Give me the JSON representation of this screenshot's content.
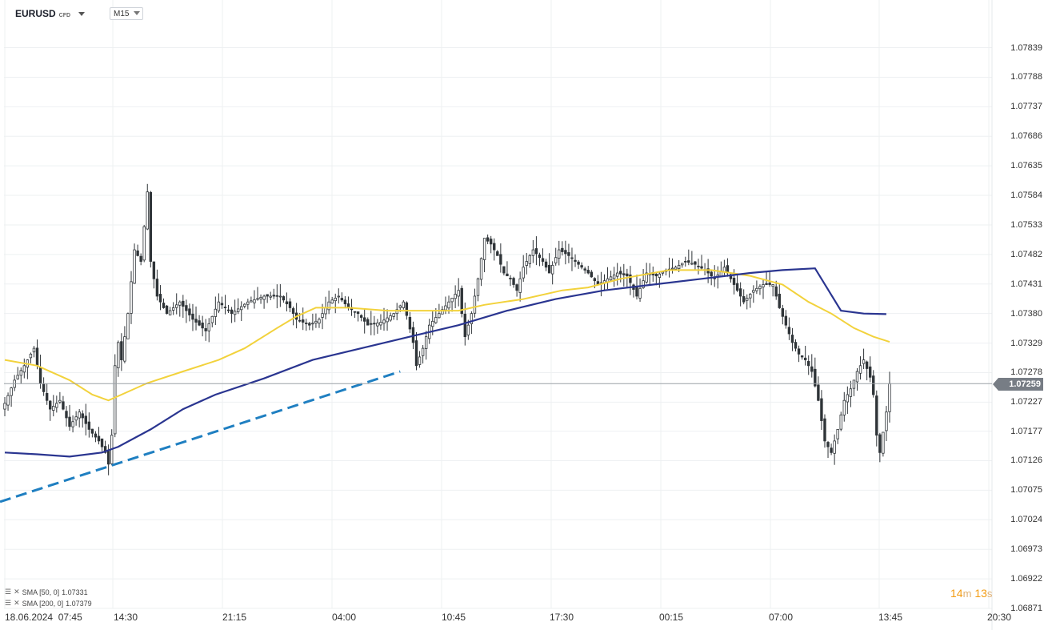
{
  "toolbar": {
    "symbol": "EURUSD",
    "symbol_type": "CFD",
    "timeframe": "M15"
  },
  "price_axis": [
    "1.07839",
    "1.07788",
    "1.07737",
    "1.07686",
    "1.07635",
    "1.07584",
    "1.07533",
    "1.07482",
    "1.07431",
    "1.07380",
    "1.07329",
    "1.07278",
    "1.07227",
    "1.07177",
    "1.07126",
    "1.07075",
    "1.07024",
    "1.06973",
    "1.06922",
    "1.06871"
  ],
  "time_axis": [
    "18.06.2024  07:45",
    "14:30",
    "21:15",
    "04:00",
    "10:45",
    "17:30",
    "00:15",
    "07:00",
    "13:45",
    "20:30"
  ],
  "current_price": "1.07259",
  "legend": [
    {
      "label": "SMA [50, 0]",
      "value": "1.07331"
    },
    {
      "label": "SMA [200, 0]",
      "value": "1.07379"
    }
  ],
  "countdown": {
    "minutes": "14",
    "m_unit": "m",
    "seconds": "13",
    "s_unit": "s"
  },
  "colors": {
    "candle": "#2f3438",
    "sma50": "#f2d23c",
    "sma200": "#2a3590",
    "trendline": "#1f7fc1",
    "grid": "#eef0f2",
    "price_line": "#9aa0a6",
    "countdown": "#f39c12"
  },
  "chart_data": {
    "type": "candlestick",
    "instrument": "EURUSD",
    "timeframe": "M15",
    "ylim": [
      1.06871,
      1.07866
    ],
    "y_ticks": [
      1.07839,
      1.07788,
      1.07737,
      1.07686,
      1.07635,
      1.07584,
      1.07533,
      1.07482,
      1.07431,
      1.0738,
      1.07329,
      1.07278,
      1.07227,
      1.07177,
      1.07126,
      1.07075,
      1.07024,
      1.06973,
      1.06922,
      1.06871
    ],
    "x_ticks": [
      "18.06.2024 07:45",
      "14:30",
      "21:15",
      "04:00",
      "10:45",
      "17:30",
      "00:15",
      "07:00",
      "13:45",
      "20:30"
    ],
    "price_path": [
      [
        0,
        1.07225
      ],
      [
        3,
        1.07265
      ],
      [
        6,
        1.0729
      ],
      [
        9,
        1.0732
      ],
      [
        11,
        1.0726
      ],
      [
        14,
        1.07215
      ],
      [
        17,
        1.0723
      ],
      [
        20,
        1.07185
      ],
      [
        23,
        1.0721
      ],
      [
        26,
        1.0718
      ],
      [
        29,
        1.0716
      ],
      [
        31,
        1.0714
      ],
      [
        32,
        1.0712
      ],
      [
        33,
        1.0717
      ],
      [
        34,
        1.0729
      ],
      [
        35,
        1.0733
      ],
      [
        36,
        1.073
      ],
      [
        38,
        1.0738
      ],
      [
        40,
        1.0749
      ],
      [
        42,
        1.0747
      ],
      [
        44,
        1.0759
      ],
      [
        45,
        1.0747
      ],
      [
        47,
        1.0741
      ],
      [
        50,
        1.0738
      ],
      [
        54,
        1.074
      ],
      [
        58,
        1.0737
      ],
      [
        62,
        1.0735
      ],
      [
        66,
        1.074
      ],
      [
        70,
        1.0738
      ],
      [
        75,
        1.074
      ],
      [
        80,
        1.0741
      ],
      [
        85,
        1.0741
      ],
      [
        88,
        1.0739
      ],
      [
        90,
        1.0737
      ],
      [
        94,
        1.0736
      ],
      [
        97,
        1.0737
      ],
      [
        100,
        1.074
      ],
      [
        103,
        1.0741
      ],
      [
        106,
        1.0739
      ],
      [
        109,
        1.0738
      ],
      [
        112,
        1.0736
      ],
      [
        116,
        1.07365
      ],
      [
        120,
        1.0738
      ],
      [
        123,
        1.074
      ],
      [
        126,
        1.0733
      ],
      [
        127,
        1.0729
      ],
      [
        129,
        1.0732
      ],
      [
        131,
        1.0736
      ],
      [
        134,
        1.0738
      ],
      [
        137,
        1.074
      ],
      [
        140,
        1.0742
      ],
      [
        142,
        1.0734
      ],
      [
        144,
        1.0738
      ],
      [
        146,
        1.0744
      ],
      [
        148,
        1.0751
      ],
      [
        150,
        1.075
      ],
      [
        152,
        1.0748
      ],
      [
        154,
        1.0745
      ],
      [
        156,
        1.0744
      ],
      [
        158,
        1.0742
      ],
      [
        160,
        1.0746
      ],
      [
        163,
        1.0749
      ],
      [
        166,
        1.0747
      ],
      [
        168,
        1.0745
      ],
      [
        171,
        1.0749
      ],
      [
        174,
        1.0748
      ],
      [
        177,
        1.07465
      ],
      [
        180,
        1.0745
      ],
      [
        183,
        1.0743
      ],
      [
        186,
        1.0744
      ],
      [
        189,
        1.0745
      ],
      [
        192,
        1.07445
      ],
      [
        195,
        1.0741
      ],
      [
        198,
        1.0745
      ],
      [
        201,
        1.07445
      ],
      [
        204,
        1.07455
      ],
      [
        207,
        1.0746
      ],
      [
        210,
        1.0747
      ],
      [
        213,
        1.07465
      ],
      [
        216,
        1.07455
      ],
      [
        219,
        1.0744
      ],
      [
        222,
        1.0746
      ],
      [
        225,
        1.0743
      ],
      [
        228,
        1.074
      ],
      [
        231,
        1.0742
      ],
      [
        234,
        1.0743
      ],
      [
        237,
        1.0743
      ],
      [
        239,
        1.0739
      ],
      [
        241,
        1.0736
      ],
      [
        243,
        1.0733
      ],
      [
        245,
        1.0731
      ],
      [
        247,
        1.073
      ],
      [
        249,
        1.0728
      ],
      [
        251,
        1.0723
      ],
      [
        253,
        1.0716
      ],
      [
        255,
        1.0714
      ],
      [
        257,
        1.0718
      ],
      [
        259,
        1.0723
      ],
      [
        261,
        1.0725
      ],
      [
        263,
        1.0728
      ],
      [
        265,
        1.073
      ],
      [
        267,
        1.0727
      ],
      [
        268,
        1.0724
      ],
      [
        269,
        1.0717
      ],
      [
        270,
        1.0714
      ],
      [
        272,
        1.0721
      ],
      [
        273,
        1.07259
      ]
    ],
    "series": [
      {
        "name": "SMA [50, 0]",
        "last_value": 1.07331,
        "points": [
          [
            0,
            1.073
          ],
          [
            10,
            1.0729
          ],
          [
            20,
            1.07265
          ],
          [
            27,
            1.0724
          ],
          [
            32,
            1.0723
          ],
          [
            36,
            1.0724
          ],
          [
            44,
            1.0726
          ],
          [
            55,
            1.0728
          ],
          [
            66,
            1.073
          ],
          [
            74,
            1.0732
          ],
          [
            84,
            1.07355
          ],
          [
            90,
            1.07375
          ],
          [
            96,
            1.0739
          ],
          [
            106,
            1.0739
          ],
          [
            118,
            1.07385
          ],
          [
            128,
            1.07385
          ],
          [
            140,
            1.07385
          ],
          [
            148,
            1.07395
          ],
          [
            160,
            1.07405
          ],
          [
            172,
            1.0742
          ],
          [
            180,
            1.07425
          ],
          [
            190,
            1.0744
          ],
          [
            205,
            1.07455
          ],
          [
            218,
            1.07455
          ],
          [
            230,
            1.07445
          ],
          [
            240,
            1.0743
          ],
          [
            248,
            1.074
          ],
          [
            255,
            1.0738
          ],
          [
            262,
            1.07355
          ],
          [
            268,
            1.0734
          ],
          [
            273,
            1.07331
          ]
        ]
      },
      {
        "name": "SMA [200, 0]",
        "last_value": 1.07379,
        "points": [
          [
            0,
            1.0714
          ],
          [
            10,
            1.07137
          ],
          [
            20,
            1.07133
          ],
          [
            30,
            1.0714
          ],
          [
            35,
            1.0715
          ],
          [
            45,
            1.0718
          ],
          [
            55,
            1.07215
          ],
          [
            65,
            1.0724
          ],
          [
            80,
            1.07268
          ],
          [
            95,
            1.073
          ],
          [
            110,
            1.0732
          ],
          [
            125,
            1.0734
          ],
          [
            140,
            1.0736
          ],
          [
            155,
            1.07385
          ],
          [
            170,
            1.07405
          ],
          [
            185,
            1.0742
          ],
          [
            200,
            1.0743
          ],
          [
            215,
            1.0744
          ],
          [
            230,
            1.0745
          ],
          [
            240,
            1.07455
          ],
          [
            250,
            1.07458
          ],
          [
            258,
            1.07385
          ],
          [
            265,
            1.0738
          ],
          [
            272,
            1.07379
          ]
        ]
      }
    ],
    "trendline": {
      "style": "dashed",
      "from": [
        0,
        1.07055
      ],
      "to": [
        122,
        1.0728
      ]
    },
    "grid": true
  }
}
